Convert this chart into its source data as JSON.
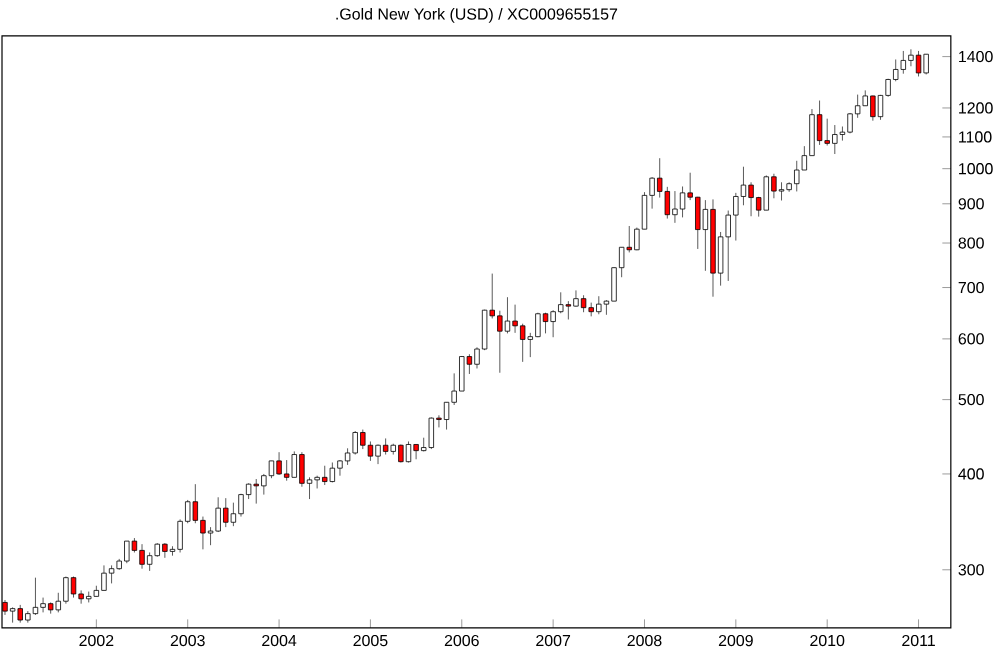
{
  "chart_data": {
    "type": "candlestick",
    "title": ".Gold New York (USD) / XC0009655157",
    "x": [
      "2001-01",
      "2001-02",
      "2001-03",
      "2001-04",
      "2001-05",
      "2001-06",
      "2001-07",
      "2001-08",
      "2001-09",
      "2001-10",
      "2001-11",
      "2001-12",
      "2002-01",
      "2002-02",
      "2002-03",
      "2002-04",
      "2002-05",
      "2002-06",
      "2002-07",
      "2002-08",
      "2002-09",
      "2002-10",
      "2002-11",
      "2002-12",
      "2003-01",
      "2003-02",
      "2003-03",
      "2003-04",
      "2003-05",
      "2003-06",
      "2003-07",
      "2003-08",
      "2003-09",
      "2003-10",
      "2003-11",
      "2003-12",
      "2004-01",
      "2004-02",
      "2004-03",
      "2004-04",
      "2004-05",
      "2004-06",
      "2004-07",
      "2004-08",
      "2004-09",
      "2004-10",
      "2004-11",
      "2004-12",
      "2005-01",
      "2005-02",
      "2005-03",
      "2005-04",
      "2005-05",
      "2005-06",
      "2005-07",
      "2005-08",
      "2005-09",
      "2005-10",
      "2005-11",
      "2005-12",
      "2006-01",
      "2006-02",
      "2006-03",
      "2006-04",
      "2006-05",
      "2006-06",
      "2006-07",
      "2006-08",
      "2006-09",
      "2006-10",
      "2006-11",
      "2006-12",
      "2007-01",
      "2007-02",
      "2007-03",
      "2007-04",
      "2007-05",
      "2007-06",
      "2007-07",
      "2007-08",
      "2007-09",
      "2007-10",
      "2007-11",
      "2007-12",
      "2008-01",
      "2008-02",
      "2008-03",
      "2008-04",
      "2008-05",
      "2008-06",
      "2008-07",
      "2008-08",
      "2008-09",
      "2008-10",
      "2008-11",
      "2008-12",
      "2009-01",
      "2009-02",
      "2009-03",
      "2009-04",
      "2009-05",
      "2009-06",
      "2009-07",
      "2009-08",
      "2009-09",
      "2009-10",
      "2009-11",
      "2009-12",
      "2010-01",
      "2010-02",
      "2010-03",
      "2010-04",
      "2010-05",
      "2010-06",
      "2010-07",
      "2010-08",
      "2010-09",
      "2010-10",
      "2010-11",
      "2010-12",
      "2011-01",
      "2011-02"
    ],
    "ohlc": [
      [
        272,
        274,
        262,
        265
      ],
      [
        265,
        268,
        256,
        267
      ],
      [
        267,
        270,
        256,
        258
      ],
      [
        258,
        265,
        256,
        263
      ],
      [
        263,
        293,
        262,
        268
      ],
      [
        268,
        276,
        264,
        271
      ],
      [
        271,
        272,
        263,
        266
      ],
      [
        266,
        280,
        264,
        273
      ],
      [
        273,
        294,
        271,
        293
      ],
      [
        293,
        294,
        276,
        279
      ],
      [
        279,
        282,
        271,
        275
      ],
      [
        275,
        281,
        272,
        277
      ],
      [
        277,
        286,
        277,
        282
      ],
      [
        282,
        304,
        282,
        297
      ],
      [
        297,
        304,
        288,
        301
      ],
      [
        301,
        310,
        300,
        308
      ],
      [
        308,
        327,
        306,
        327
      ],
      [
        327,
        330,
        316,
        318
      ],
      [
        318,
        324,
        301,
        305
      ],
      [
        305,
        316,
        299,
        313
      ],
      [
        313,
        325,
        312,
        324
      ],
      [
        324,
        325,
        311,
        317
      ],
      [
        317,
        322,
        313,
        319
      ],
      [
        319,
        349,
        316,
        347
      ],
      [
        347,
        370,
        345,
        368
      ],
      [
        368,
        388,
        345,
        348
      ],
      [
        348,
        352,
        319,
        335
      ],
      [
        335,
        341,
        323,
        337
      ],
      [
        337,
        373,
        336,
        361
      ],
      [
        361,
        372,
        341,
        346
      ],
      [
        346,
        367,
        342,
        355
      ],
      [
        355,
        377,
        352,
        376
      ],
      [
        376,
        389,
        371,
        388
      ],
      [
        388,
        394,
        366,
        386
      ],
      [
        386,
        400,
        376,
        398
      ],
      [
        398,
        416,
        395,
        416
      ],
      [
        416,
        427,
        399,
        400
      ],
      [
        400,
        417,
        392,
        396
      ],
      [
        396,
        428,
        396,
        424
      ],
      [
        424,
        427,
        385,
        389
      ],
      [
        389,
        396,
        371,
        393
      ],
      [
        393,
        398,
        383,
        396
      ],
      [
        396,
        410,
        387,
        391
      ],
      [
        391,
        414,
        390,
        407
      ],
      [
        407,
        417,
        398,
        416
      ],
      [
        416,
        432,
        411,
        426
      ],
      [
        426,
        455,
        424,
        453
      ],
      [
        453,
        457,
        431,
        436
      ],
      [
        436,
        441,
        416,
        422
      ],
      [
        422,
        437,
        412,
        436
      ],
      [
        436,
        445,
        424,
        428
      ],
      [
        428,
        438,
        424,
        436
      ],
      [
        436,
        437,
        414,
        415
      ],
      [
        415,
        441,
        414,
        437
      ],
      [
        437,
        437,
        418,
        429
      ],
      [
        429,
        446,
        428,
        433
      ],
      [
        433,
        474,
        431,
        473
      ],
      [
        473,
        477,
        460,
        471
      ],
      [
        471,
        496,
        457,
        496
      ],
      [
        496,
        541,
        492,
        513
      ],
      [
        513,
        570,
        513,
        569
      ],
      [
        569,
        573,
        540,
        556
      ],
      [
        556,
        585,
        549,
        582
      ],
      [
        582,
        655,
        580,
        654
      ],
      [
        654,
        730,
        638,
        643
      ],
      [
        643,
        653,
        542,
        614
      ],
      [
        614,
        680,
        610,
        633
      ],
      [
        633,
        665,
        611,
        624
      ],
      [
        624,
        628,
        560,
        599
      ],
      [
        599,
        611,
        568,
        604
      ],
      [
        604,
        649,
        603,
        647
      ],
      [
        647,
        649,
        610,
        632
      ],
      [
        632,
        654,
        603,
        651
      ],
      [
        651,
        690,
        648,
        665
      ],
      [
        665,
        672,
        636,
        662
      ],
      [
        662,
        694,
        661,
        677
      ],
      [
        677,
        684,
        650,
        659
      ],
      [
        659,
        669,
        642,
        651
      ],
      [
        651,
        682,
        646,
        666
      ],
      [
        666,
        674,
        645,
        672
      ],
      [
        672,
        744,
        672,
        743
      ],
      [
        743,
        790,
        722,
        790
      ],
      [
        790,
        842,
        778,
        784
      ],
      [
        784,
        838,
        783,
        834
      ],
      [
        834,
        932,
        834,
        923
      ],
      [
        923,
        975,
        887,
        972
      ],
      [
        972,
        1032,
        917,
        934
      ],
      [
        934,
        947,
        861,
        871
      ],
      [
        871,
        935,
        850,
        886
      ],
      [
        886,
        948,
        864,
        930
      ],
      [
        930,
        988,
        910,
        918
      ],
      [
        918,
        919,
        786,
        833
      ],
      [
        833,
        910,
        736,
        885
      ],
      [
        885,
        912,
        681,
        731
      ],
      [
        731,
        827,
        704,
        815
      ],
      [
        815,
        882,
        714,
        870
      ],
      [
        870,
        930,
        806,
        920
      ],
      [
        920,
        1006,
        896,
        952
      ],
      [
        952,
        960,
        867,
        917
      ],
      [
        917,
        919,
        866,
        883
      ],
      [
        883,
        980,
        883,
        976
      ],
      [
        976,
        985,
        915,
        935
      ],
      [
        935,
        960,
        909,
        939
      ],
      [
        939,
        960,
        933,
        956
      ],
      [
        956,
        1024,
        934,
        996
      ],
      [
        996,
        1070,
        996,
        1040
      ],
      [
        1040,
        1196,
        1040,
        1176
      ],
      [
        1176,
        1227,
        1074,
        1088
      ],
      [
        1088,
        1162,
        1072,
        1079
      ],
      [
        1079,
        1140,
        1045,
        1108
      ],
      [
        1108,
        1135,
        1088,
        1116
      ],
      [
        1116,
        1182,
        1112,
        1179
      ],
      [
        1179,
        1249,
        1165,
        1208
      ],
      [
        1208,
        1265,
        1208,
        1244
      ],
      [
        1244,
        1245,
        1155,
        1169
      ],
      [
        1169,
        1248,
        1158,
        1246
      ],
      [
        1246,
        1310,
        1241,
        1307
      ],
      [
        1307,
        1388,
        1300,
        1347
      ],
      [
        1347,
        1424,
        1330,
        1384
      ],
      [
        1384,
        1431,
        1360,
        1406
      ],
      [
        1406,
        1424,
        1319,
        1333
      ],
      [
        1333,
        1411,
        1327,
        1410
      ]
    ],
    "xlim": [
      "2000-12-20",
      "2011-05-10"
    ],
    "xticks": [
      "2002",
      "2003",
      "2004",
      "2005",
      "2006",
      "2007",
      "2008",
      "2009",
      "2010",
      "2011"
    ],
    "log": "y",
    "ylim": [
      252,
      1490
    ],
    "yticks": [
      300,
      400,
      500,
      600,
      700,
      800,
      900,
      1000,
      1100,
      1200,
      1400
    ]
  }
}
